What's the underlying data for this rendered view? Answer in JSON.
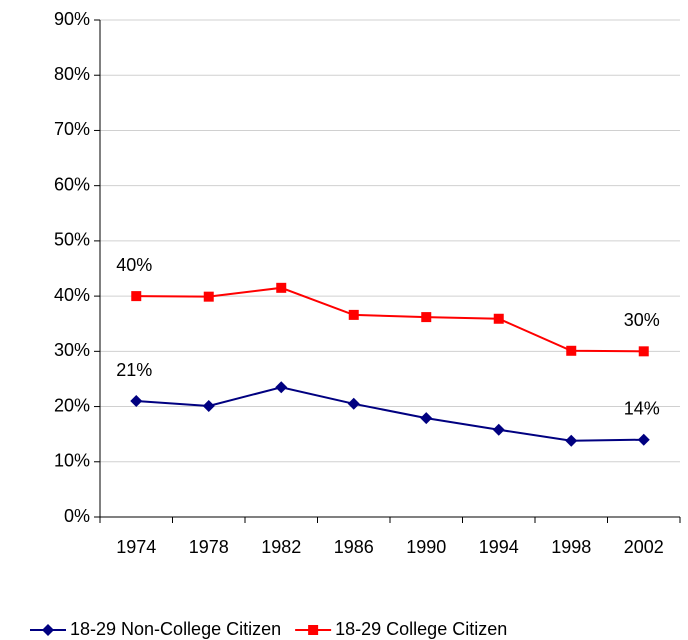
{
  "chart_data": {
    "type": "line",
    "categories": [
      "1974",
      "1978",
      "1982",
      "1986",
      "1990",
      "1994",
      "1998",
      "2002"
    ],
    "series": [
      {
        "name": "18-29 Non-College Citizen",
        "color": "#000080",
        "marker": "diamond",
        "values": [
          21,
          20.1,
          23.5,
          20.5,
          17.9,
          15.8,
          13.8,
          14
        ],
        "value_labels": [
          "21%",
          null,
          null,
          null,
          null,
          null,
          null,
          "14%"
        ]
      },
      {
        "name": "18-29 College Citizen",
        "color": "#ff0000",
        "marker": "square",
        "values": [
          40,
          39.9,
          41.5,
          36.6,
          36.2,
          35.9,
          30.1,
          30
        ],
        "value_labels": [
          "40%",
          null,
          null,
          null,
          null,
          null,
          null,
          "30%"
        ]
      }
    ],
    "ylim": [
      0,
      90
    ],
    "yticks": [
      {
        "value": 0,
        "label": "0%"
      },
      {
        "value": 10,
        "label": "10%"
      },
      {
        "value": 20,
        "label": "20%"
      },
      {
        "value": 30,
        "label": "30%"
      },
      {
        "value": 40,
        "label": "40%"
      },
      {
        "value": 50,
        "label": "50%"
      },
      {
        "value": 60,
        "label": "60%"
      },
      {
        "value": 70,
        "label": "70%"
      },
      {
        "value": 80,
        "label": "80%"
      },
      {
        "value": 90,
        "label": "90%"
      }
    ],
    "grid": true,
    "legend": "bottom"
  }
}
